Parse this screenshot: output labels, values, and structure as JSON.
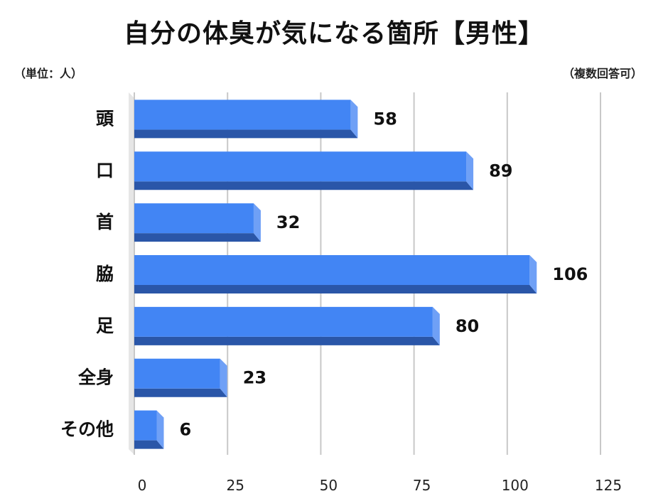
{
  "chart_data": {
    "type": "bar",
    "orientation": "horizontal",
    "title": "自分の体臭が気になる箇所【男性】",
    "unit_label": "（単位：人）",
    "note": "（複数回答可）",
    "categories": [
      "頭",
      "口",
      "首",
      "脇",
      "足",
      "全身",
      "その他"
    ],
    "values": [
      58,
      89,
      32,
      106,
      80,
      23,
      6
    ],
    "xlim": [
      0,
      125
    ],
    "x_ticks": [
      0,
      25,
      50,
      75,
      100,
      125
    ],
    "grid": true,
    "bar_color": "#4285f4",
    "bar_shade_color": "#2a56a8",
    "bar_side_color": "#6fa0f6",
    "grid_color": "#c8c8c8"
  }
}
